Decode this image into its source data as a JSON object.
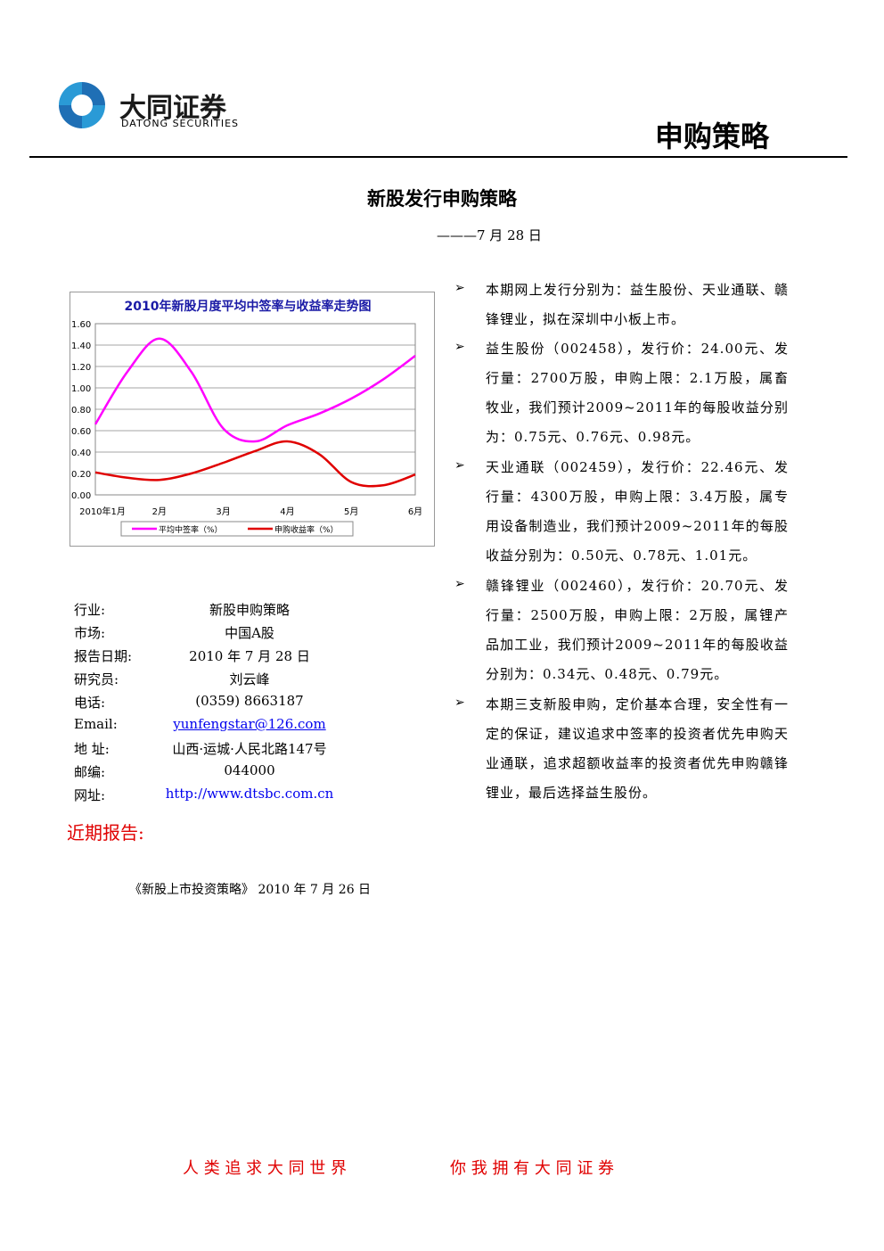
{
  "header": {
    "logo_cn": "大同证券",
    "logo_en": "DATONG SECURITIES",
    "section": "申购策略"
  },
  "title": "新股发行申购策略",
  "date": "———7 月 28 日",
  "bullets": [
    "本期网上发行分别为：益生股份、天业通联、赣锋锂业，拟在深圳中小板上市。",
    "益生股份（002458），发行价：24.00元、发行量：2700万股，申购上限：2.1万股，属畜牧业，我们预计2009~2011年的每股收益分别为：0.75元、0.76元、0.98元。",
    "天业通联（002459），发行价：22.46元、发行量：4300万股，申购上限：3.4万股，属专用设备制造业，我们预计2009~2011年的每股收益分别为：0.50元、0.78元、1.01元。",
    "赣锋锂业（002460），发行价：20.70元、发行量：2500万股，申购上限：2万股，属锂产品加工业，我们预计2009~2011年的每股收益分别为：0.34元、0.48元、0.79元。",
    "本期三支新股申购，定价基本合理，安全性有一定的保证，建议追求中签率的投资者优先申购天业通联，追求超额收益率的投资者优先申购赣锋锂业，最后选择益生股份。"
  ],
  "info": [
    [
      "行业:",
      "新股申购策略"
    ],
    [
      "市场:",
      "中国A股"
    ],
    [
      "报告日期:",
      "2010 年 7 月 28 日"
    ],
    [
      "研究员:",
      "刘云峰"
    ],
    [
      "电话:",
      "(0359) 8663187"
    ],
    [
      "Email:",
      "yunfengstar@126.com"
    ],
    [
      "地 址:",
      "山西·运城·人民北路147号"
    ],
    [
      "邮编:",
      "044000"
    ],
    [
      "网址:",
      "http://www.dtsbc.com.cn"
    ]
  ],
  "recent": {
    "heading": "近期报告:",
    "items": [
      "《新股上市投资策略》 2010 年 7 月 26 日"
    ]
  },
  "footer": [
    "人 类 追 求 大 同 世 界",
    "你 我 拥 有 大 同 证 券"
  ],
  "chart_data": {
    "type": "line",
    "title": "2010年新股月度平均中签率与收益率走势图",
    "categories": [
      "2010年1月",
      null,
      "2月",
      null,
      "3月",
      null,
      "4月",
      null,
      "5月",
      null,
      "6月"
    ],
    "series": [
      {
        "name": "平均中签率（%）",
        "color": "#ff00ff",
        "values": [
          0.66,
          1.15,
          1.46,
          1.15,
          0.62,
          0.5,
          0.65,
          0.76,
          0.9,
          1.08,
          1.3
        ]
      },
      {
        "name": "申购收益率（%）",
        "color": "#e00000",
        "values": [
          0.21,
          0.16,
          0.14,
          0.2,
          0.3,
          0.41,
          0.5,
          0.38,
          0.12,
          0.09,
          0.19
        ]
      }
    ],
    "ylim": [
      0,
      1.6
    ],
    "yticks": [
      {
        "value": 0,
        "label": "0.00"
      },
      {
        "value": 0.2,
        "label": "0.20"
      },
      {
        "value": 0.4,
        "label": "0.40"
      },
      {
        "value": 0.6,
        "label": "0.60"
      },
      {
        "value": 0.8,
        "label": "0.80"
      },
      {
        "value": 1,
        "label": "1.00"
      },
      {
        "value": 1.2,
        "label": "1.20"
      },
      {
        "value": 1.4,
        "label": "1.40"
      },
      {
        "value": 1.6,
        "label": "1.60"
      }
    ],
    "grid": true,
    "legend": "bottom"
  }
}
